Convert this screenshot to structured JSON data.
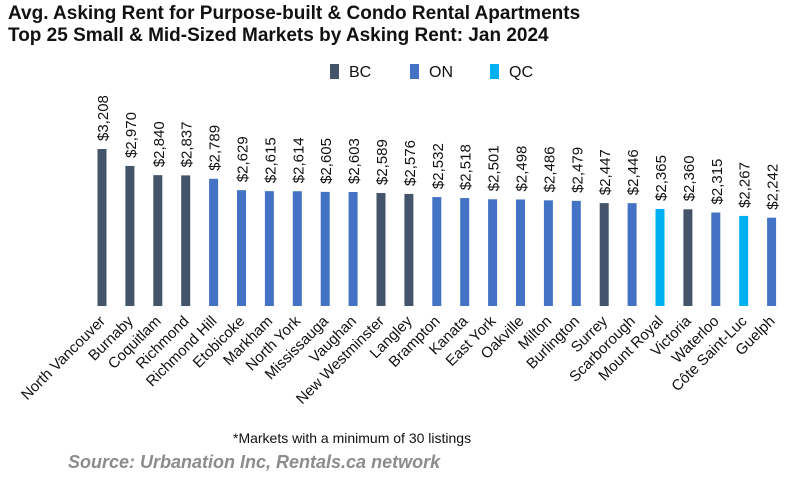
{
  "title_line1": "Avg. Asking Rent for Purpose-built & Condo Rental Apartments",
  "title_line2": "Top 25 Small & Mid-Sized Markets by Asking Rent: Jan 2024",
  "footnote": "*Markets with a minimum of 30 listings",
  "source": "Source: Urbanation Inc, Rentals.ca network",
  "colors": {
    "BC": "#44546a",
    "ON": "#4472c4",
    "QC": "#00b0f0"
  },
  "chart_data": {
    "type": "bar",
    "title": "Avg. Asking Rent for Purpose-built & Condo Rental Apartments — Top 25 Small & Mid-Sized Markets by Asking Rent: Jan 2024",
    "xlabel": "",
    "ylabel": "",
    "legend": [
      "BC",
      "ON",
      "QC"
    ],
    "legend_position": "top",
    "grid": false,
    "categories": [
      "North Vancouver",
      "Burnaby",
      "Coquitlam",
      "Richmond",
      "Richmond Hill",
      "Etobicoke",
      "Markham",
      "North York",
      "Mississauga",
      "Vaughan",
      "New Westminster",
      "Langley",
      "Brampton",
      "Kanata",
      "East York",
      "Oakville",
      "Milton",
      "Burlington",
      "Surrey",
      "Scarborough",
      "Mount Royal",
      "Victoria",
      "Waterloo",
      "Côte Saint-Luc",
      "Guelph"
    ],
    "values": [
      3208,
      2970,
      2840,
      2837,
      2789,
      2629,
      2615,
      2614,
      2605,
      2603,
      2589,
      2576,
      2532,
      2518,
      2501,
      2498,
      2486,
      2479,
      2447,
      2446,
      2365,
      2360,
      2315,
      2267,
      2242
    ],
    "labels": [
      "$3,208",
      "$2,970",
      "$2,840",
      "$2,837",
      "$2,789",
      "$2,629",
      "$2,615",
      "$2,614",
      "$2,605",
      "$2,603",
      "$2,589",
      "$2,576",
      "$2,532",
      "$2,518",
      "$2,501",
      "$2,498",
      "$2,486",
      "$2,479",
      "$2,447",
      "$2,446",
      "$2,365",
      "$2,360",
      "$2,315",
      "$2,267",
      "$2,242"
    ],
    "groups": [
      "BC",
      "BC",
      "BC",
      "BC",
      "ON",
      "ON",
      "ON",
      "ON",
      "ON",
      "ON",
      "BC",
      "BC",
      "ON",
      "ON",
      "ON",
      "ON",
      "ON",
      "ON",
      "BC",
      "ON",
      "QC",
      "BC",
      "ON",
      "QC",
      "ON"
    ],
    "ylim": [
      1000,
      3208
    ]
  }
}
